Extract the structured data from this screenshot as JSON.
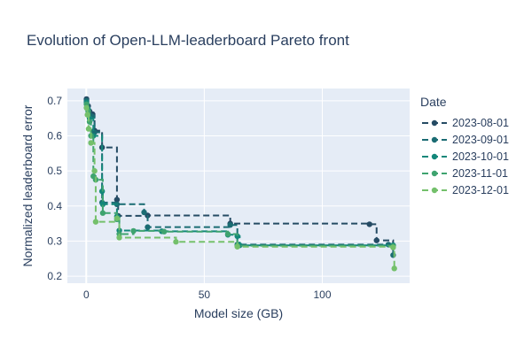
{
  "chart_data": {
    "type": "line",
    "title": "Evolution of Open-LLM-leaderboard Pareto front",
    "xlabel": "Model size (GB)",
    "ylabel": "Normalized leaderboard error",
    "xlim": [
      -8,
      137
    ],
    "ylim": [
      0.18,
      0.735
    ],
    "xticks": [
      0,
      50,
      100
    ],
    "yticks": [
      0.2,
      0.3,
      0.4,
      0.5,
      0.6,
      0.7
    ],
    "xtick_labels": [
      "0",
      "50",
      "100"
    ],
    "ytick_labels": [
      "0.2",
      "0.3",
      "0.4",
      "0.5",
      "0.6",
      "0.7"
    ],
    "grid": true,
    "legend_title": "Date",
    "legend_position": "right",
    "line_shape": "stepped, dashed with markers",
    "series": [
      {
        "name": "2023-08-01",
        "color": "#254b64",
        "points": [
          [
            0.1,
            0.705
          ],
          [
            0.8,
            0.685
          ],
          [
            1.4,
            0.67
          ],
          [
            2.6,
            0.662
          ],
          [
            3.5,
            0.615
          ],
          [
            6.7,
            0.567
          ],
          [
            13,
            0.418
          ],
          [
            13.5,
            0.372
          ],
          [
            26,
            0.373
          ],
          [
            61,
            0.35
          ],
          [
            120,
            0.348
          ],
          [
            123,
            0.302
          ],
          [
            130,
            0.287
          ]
        ]
      },
      {
        "name": "2023-09-01",
        "color": "#1b6c73",
        "points": [
          [
            0.1,
            0.7
          ],
          [
            0.5,
            0.68
          ],
          [
            1.4,
            0.66
          ],
          [
            2.6,
            0.655
          ],
          [
            3.5,
            0.61
          ],
          [
            6.7,
            0.41
          ],
          [
            13,
            0.405
          ],
          [
            24.5,
            0.382
          ],
          [
            26,
            0.34
          ],
          [
            61,
            0.346
          ],
          [
            64,
            0.29
          ],
          [
            128,
            0.29
          ],
          [
            130,
            0.26
          ]
        ]
      },
      {
        "name": "2023-10-01",
        "color": "#13877a",
        "points": [
          [
            0.1,
            0.695
          ],
          [
            0.8,
            0.675
          ],
          [
            1.4,
            0.65
          ],
          [
            3,
            0.6
          ],
          [
            6.7,
            0.442
          ],
          [
            7,
            0.405
          ],
          [
            13,
            0.37
          ],
          [
            14,
            0.33
          ],
          [
            32,
            0.328
          ],
          [
            60,
            0.318
          ],
          [
            64,
            0.314
          ],
          [
            65,
            0.288
          ],
          [
            130,
            0.288
          ]
        ]
      },
      {
        "name": "2023-11-01",
        "color": "#3ea36f",
        "points": [
          [
            0.1,
            0.69
          ],
          [
            0.8,
            0.67
          ],
          [
            1.4,
            0.64
          ],
          [
            2,
            0.6
          ],
          [
            3,
            0.485
          ],
          [
            4,
            0.475
          ],
          [
            7,
            0.38
          ],
          [
            13,
            0.362
          ],
          [
            14,
            0.32
          ],
          [
            20,
            0.329
          ],
          [
            33,
            0.327
          ],
          [
            60,
            0.32
          ],
          [
            64,
            0.287
          ],
          [
            130,
            0.285
          ]
        ]
      },
      {
        "name": "2023-12-01",
        "color": "#74c06b",
        "points": [
          [
            0.1,
            0.68
          ],
          [
            0.5,
            0.66
          ],
          [
            1,
            0.62
          ],
          [
            2,
            0.58
          ],
          [
            3.5,
            0.5
          ],
          [
            4,
            0.355
          ],
          [
            13,
            0.365
          ],
          [
            14,
            0.31
          ],
          [
            38,
            0.298
          ],
          [
            64,
            0.284
          ],
          [
            130,
            0.282
          ],
          [
            130.5,
            0.222
          ]
        ]
      }
    ]
  }
}
